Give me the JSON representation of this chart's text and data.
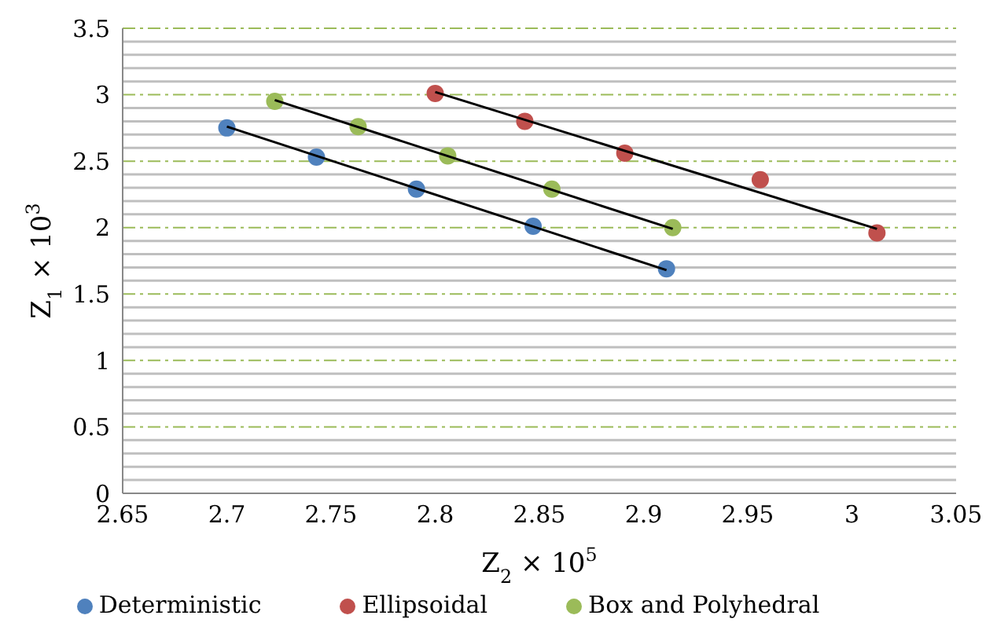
{
  "chart_data": {
    "type": "scatter",
    "xlabel": "Z$_{2}$   × 10$^{5}$",
    "ylabel": "Z$_{1}$ × 10$^{3}$",
    "xlim": [
      2.65,
      3.05
    ],
    "xticks": [
      2.65,
      2.7,
      2.75,
      2.8,
      2.85,
      2.9,
      2.95,
      3,
      3.05
    ],
    "ylim": [
      0,
      3.5
    ],
    "yticks": [
      0,
      {
        "value": 0.1,
        "label": null
      },
      {
        "value": 0.2,
        "label": null
      },
      {
        "value": 0.3,
        "label": null
      },
      {
        "value": 0.4,
        "label": null
      },
      0.5,
      {
        "value": 0.6,
        "label": null
      },
      {
        "value": 0.7,
        "label": null
      },
      {
        "value": 0.8,
        "label": null
      },
      {
        "value": 0.9,
        "label": null
      },
      1,
      {
        "value": 1.1,
        "label": null
      },
      {
        "value": 1.2,
        "label": null
      },
      {
        "value": 1.3,
        "label": null
      },
      {
        "value": 1.4,
        "label": null
      },
      1.5,
      {
        "value": 1.6,
        "label": null
      },
      {
        "value": 1.7,
        "label": null
      },
      {
        "value": 1.8,
        "label": null
      },
      {
        "value": 1.9,
        "label": null
      },
      2,
      {
        "value": 2.1,
        "label": null
      },
      {
        "value": 2.2,
        "label": null
      },
      {
        "value": 2.3,
        "label": null
      },
      {
        "value": 2.4,
        "label": null
      },
      2.5,
      {
        "value": 2.6,
        "label": null
      },
      {
        "value": 2.7,
        "label": null
      },
      {
        "value": 2.8,
        "label": null
      },
      {
        "value": 2.9,
        "label": null
      },
      3,
      {
        "value": 3.1,
        "label": null
      },
      {
        "value": 3.2,
        "label": null
      },
      {
        "value": 3.3,
        "label": null
      },
      {
        "value": 3.4,
        "label": null
      },
      3.5
    ],
    "grid": "y",
    "legend": "bottom",
    "marker": "circle",
    "series": [
      {
        "name": "Deterministic",
        "color": "#4f81bd",
        "x": [
          2.7,
          2.743,
          2.791,
          2.847,
          2.911
        ],
        "values": [
          2.75,
          2.53,
          2.29,
          2.01,
          1.69
        ]
      },
      {
        "name": "Ellipsoidal",
        "color": "#c0504d",
        "x": [
          2.8,
          2.843,
          2.891,
          2.956,
          3.012
        ],
        "values": [
          3.01,
          2.8,
          2.56,
          2.36,
          1.96
        ]
      },
      {
        "name": "Box and Polyhedral",
        "color": "#9bbb59",
        "x": [
          2.723,
          2.763,
          2.806,
          2.856,
          2.914
        ],
        "values": [
          2.95,
          2.76,
          2.54,
          2.29,
          2.0
        ]
      },
      {
        "type": "line",
        "color": "#000000",
        "marker": "none",
        "x": [
          2.7,
          2.911
        ],
        "values": [
          2.76,
          1.68
        ]
      },
      {
        "type": "line",
        "color": "#000000",
        "marker": "none",
        "x": [
          2.723,
          2.914
        ],
        "values": [
          2.96,
          1.99
        ]
      },
      {
        "type": "line",
        "color": "#000000",
        "marker": "none",
        "x": [
          2.8,
          3.012
        ],
        "values": [
          3.02,
          1.99
        ]
      }
    ]
  }
}
